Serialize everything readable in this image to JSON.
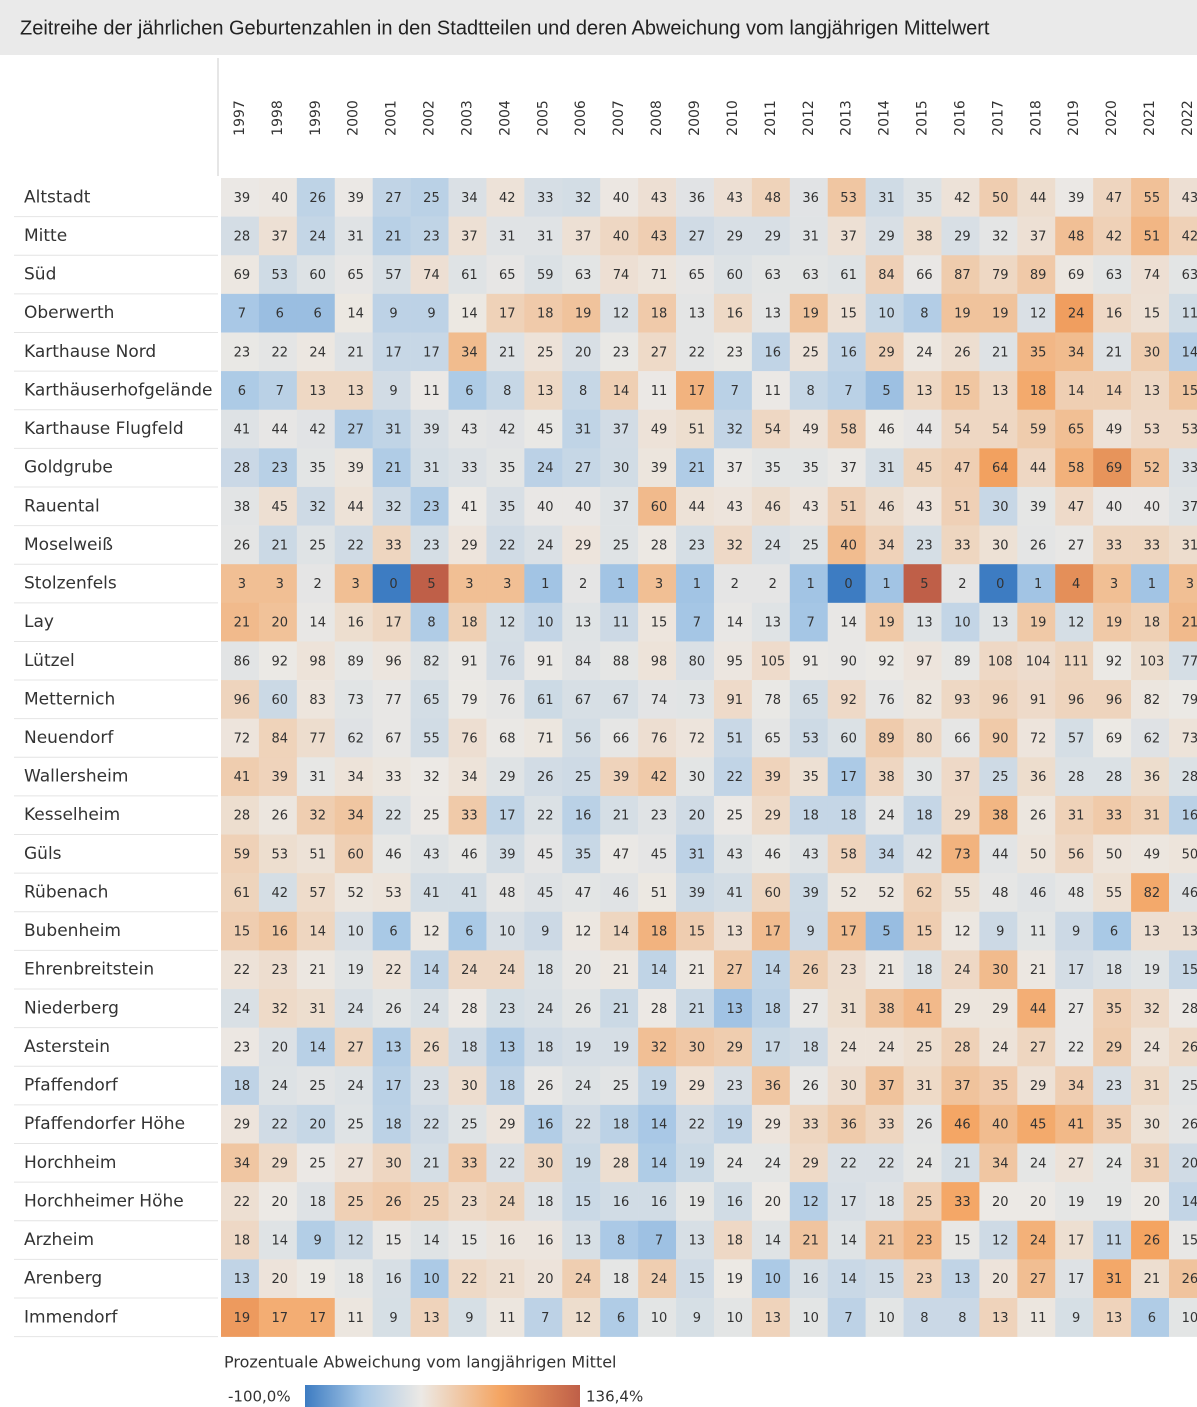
{
  "chart_data": {
    "type": "heatmap",
    "title": "Zeitreihe der jährlichen Geburtenzahlen in den Stadtteilen und deren Abweichung vom langjährigen Mittelwert",
    "categories": [
      "1997",
      "1998",
      "1999",
      "2000",
      "2001",
      "2002",
      "2003",
      "2004",
      "2005",
      "2006",
      "2007",
      "2008",
      "2009",
      "2010",
      "2011",
      "2012",
      "2013",
      "2014",
      "2015",
      "2016",
      "2017",
      "2018",
      "2019",
      "2020",
      "2021",
      "2022"
    ],
    "rows": [
      "Altstadt",
      "Mitte",
      "Süd",
      "Oberwerth",
      "Karthause Nord",
      "Karthäuserhofgelände",
      "Karthause Flugfeld",
      "Goldgrube",
      "Rauental",
      "Moselweiß",
      "Stolzenfels",
      "Lay",
      "Lützel",
      "Metternich",
      "Neuendorf",
      "Wallersheim",
      "Kesselheim",
      "Güls",
      "Rübenach",
      "Bubenheim",
      "Ehrenbreitstein",
      "Niederberg",
      "Asterstein",
      "Pfaffendorf",
      "Pfaffendorfer Höhe",
      "Horchheim",
      "Horchheimer Höhe",
      "Arzheim",
      "Arenberg",
      "Immendorf"
    ],
    "values": [
      [
        39,
        40,
        26,
        39,
        27,
        25,
        34,
        42,
        33,
        32,
        40,
        43,
        36,
        43,
        48,
        36,
        53,
        31,
        35,
        42,
        50,
        44,
        39,
        47,
        55,
        43
      ],
      [
        28,
        37,
        24,
        31,
        21,
        23,
        37,
        31,
        31,
        37,
        40,
        43,
        27,
        29,
        29,
        31,
        37,
        29,
        38,
        29,
        32,
        37,
        48,
        42,
        51,
        42
      ],
      [
        69,
        53,
        60,
        65,
        57,
        74,
        61,
        65,
        59,
        63,
        74,
        71,
        65,
        60,
        63,
        63,
        61,
        84,
        66,
        87,
        79,
        89,
        69,
        63,
        74,
        63
      ],
      [
        7,
        6,
        6,
        14,
        9,
        9,
        14,
        17,
        18,
        19,
        12,
        18,
        13,
        16,
        13,
        19,
        15,
        10,
        8,
        19,
        19,
        12,
        24,
        16,
        15,
        11
      ],
      [
        23,
        22,
        24,
        21,
        17,
        17,
        34,
        21,
        25,
        20,
        23,
        27,
        22,
        23,
        16,
        25,
        16,
        29,
        24,
        26,
        21,
        35,
        34,
        21,
        30,
        14
      ],
      [
        6,
        7,
        13,
        13,
        9,
        11,
        6,
        8,
        13,
        8,
        14,
        11,
        17,
        7,
        11,
        8,
        7,
        5,
        13,
        15,
        13,
        18,
        14,
        14,
        13,
        15
      ],
      [
        41,
        44,
        42,
        27,
        31,
        39,
        43,
        42,
        45,
        31,
        37,
        49,
        51,
        32,
        54,
        49,
        58,
        46,
        44,
        54,
        54,
        59,
        65,
        49,
        53,
        53
      ],
      [
        28,
        23,
        35,
        39,
        21,
        31,
        33,
        35,
        24,
        27,
        30,
        39,
        21,
        37,
        35,
        35,
        37,
        31,
        45,
        47,
        64,
        44,
        58,
        69,
        52,
        33
      ],
      [
        38,
        45,
        32,
        44,
        32,
        23,
        41,
        35,
        40,
        40,
        37,
        60,
        44,
        43,
        46,
        43,
        51,
        46,
        43,
        51,
        30,
        39,
        47,
        40,
        40,
        37
      ],
      [
        26,
        21,
        25,
        22,
        33,
        23,
        29,
        22,
        24,
        29,
        25,
        28,
        23,
        32,
        24,
        25,
        40,
        34,
        23,
        33,
        30,
        26,
        27,
        33,
        33,
        31
      ],
      [
        3,
        3,
        2,
        3,
        0,
        5,
        3,
        3,
        1,
        2,
        1,
        3,
        1,
        2,
        2,
        1,
        0,
        1,
        5,
        2,
        0,
        1,
        4,
        3,
        1,
        3
      ],
      [
        21,
        20,
        14,
        16,
        17,
        8,
        18,
        12,
        10,
        13,
        11,
        15,
        7,
        14,
        13,
        7,
        14,
        19,
        13,
        10,
        13,
        19,
        12,
        19,
        18,
        21
      ],
      [
        86,
        92,
        98,
        89,
        96,
        82,
        91,
        76,
        91,
        84,
        88,
        98,
        80,
        95,
        105,
        91,
        90,
        92,
        97,
        89,
        108,
        104,
        111,
        92,
        103,
        77
      ],
      [
        96,
        60,
        83,
        73,
        77,
        65,
        79,
        76,
        61,
        67,
        67,
        74,
        73,
        91,
        78,
        65,
        92,
        76,
        82,
        93,
        96,
        91,
        96,
        96,
        82,
        79
      ],
      [
        72,
        84,
        77,
        62,
        67,
        55,
        76,
        68,
        71,
        56,
        66,
        76,
        72,
        51,
        65,
        53,
        60,
        89,
        80,
        66,
        90,
        72,
        57,
        69,
        62,
        73
      ],
      [
        41,
        39,
        31,
        34,
        33,
        32,
        34,
        29,
        26,
        25,
        39,
        42,
        30,
        22,
        39,
        35,
        17,
        38,
        30,
        37,
        25,
        36,
        28,
        28,
        36,
        28
      ],
      [
        28,
        26,
        32,
        34,
        22,
        25,
        33,
        17,
        22,
        16,
        21,
        23,
        20,
        25,
        29,
        18,
        18,
        24,
        18,
        29,
        38,
        26,
        31,
        33,
        31,
        16
      ],
      [
        59,
        53,
        51,
        60,
        46,
        43,
        46,
        39,
        45,
        35,
        47,
        45,
        31,
        43,
        46,
        43,
        58,
        34,
        42,
        73,
        44,
        50,
        56,
        50,
        49,
        50
      ],
      [
        61,
        42,
        57,
        52,
        53,
        41,
        41,
        48,
        45,
        47,
        46,
        51,
        39,
        41,
        60,
        39,
        52,
        52,
        62,
        55,
        48,
        46,
        48,
        55,
        82,
        46
      ],
      [
        15,
        16,
        14,
        10,
        6,
        12,
        6,
        10,
        9,
        12,
        14,
        18,
        15,
        13,
        17,
        9,
        17,
        5,
        15,
        12,
        9,
        11,
        9,
        6,
        13,
        13
      ],
      [
        22,
        23,
        21,
        19,
        22,
        14,
        24,
        24,
        18,
        20,
        21,
        14,
        21,
        27,
        14,
        26,
        23,
        21,
        18,
        24,
        30,
        21,
        17,
        18,
        19,
        15
      ],
      [
        24,
        32,
        31,
        24,
        26,
        24,
        28,
        23,
        24,
        26,
        21,
        28,
        21,
        13,
        18,
        27,
        31,
        38,
        41,
        29,
        29,
        44,
        27,
        35,
        32,
        28
      ],
      [
        23,
        20,
        14,
        27,
        13,
        26,
        18,
        13,
        18,
        19,
        19,
        32,
        30,
        29,
        17,
        18,
        24,
        24,
        25,
        28,
        24,
        27,
        22,
        29,
        24,
        26
      ],
      [
        18,
        24,
        25,
        24,
        17,
        23,
        30,
        18,
        26,
        24,
        25,
        19,
        29,
        23,
        36,
        26,
        30,
        37,
        31,
        37,
        35,
        29,
        34,
        23,
        31,
        25
      ],
      [
        29,
        22,
        20,
        25,
        18,
        22,
        25,
        29,
        16,
        22,
        18,
        14,
        22,
        19,
        29,
        33,
        36,
        33,
        26,
        46,
        40,
        45,
        41,
        35,
        30,
        26
      ],
      [
        34,
        29,
        25,
        27,
        30,
        21,
        33,
        22,
        30,
        19,
        28,
        14,
        19,
        24,
        24,
        29,
        22,
        22,
        24,
        21,
        34,
        24,
        27,
        24,
        31,
        20
      ],
      [
        22,
        20,
        18,
        25,
        26,
        25,
        23,
        24,
        18,
        15,
        16,
        16,
        19,
        16,
        20,
        12,
        17,
        18,
        25,
        33,
        20,
        20,
        19,
        19,
        20,
        14
      ],
      [
        18,
        14,
        9,
        12,
        15,
        14,
        15,
        16,
        16,
        13,
        8,
        7,
        13,
        18,
        14,
        21,
        14,
        21,
        23,
        15,
        12,
        24,
        17,
        11,
        26,
        15
      ],
      [
        13,
        20,
        19,
        18,
        16,
        10,
        22,
        21,
        20,
        24,
        18,
        24,
        15,
        19,
        10,
        16,
        14,
        15,
        23,
        13,
        20,
        27,
        17,
        31,
        21,
        26
      ],
      [
        19,
        17,
        17,
        11,
        9,
        13,
        9,
        11,
        7,
        12,
        6,
        10,
        9,
        10,
        13,
        10,
        7,
        10,
        8,
        8,
        13,
        11,
        9,
        13,
        6,
        10
      ]
    ],
    "colors": [
      "#3d7cc2",
      "#a8c8e6",
      "#ece9e5",
      "#f4a461",
      "#bf5f48"
    ],
    "legend": {
      "title": "Prozentuale Abweichung vom langjährigen Mittel",
      "min": {
        "value": -100,
        "label": "-100,0%"
      },
      "max": {
        "value": 136.4,
        "label": "136,4%"
      }
    }
  }
}
